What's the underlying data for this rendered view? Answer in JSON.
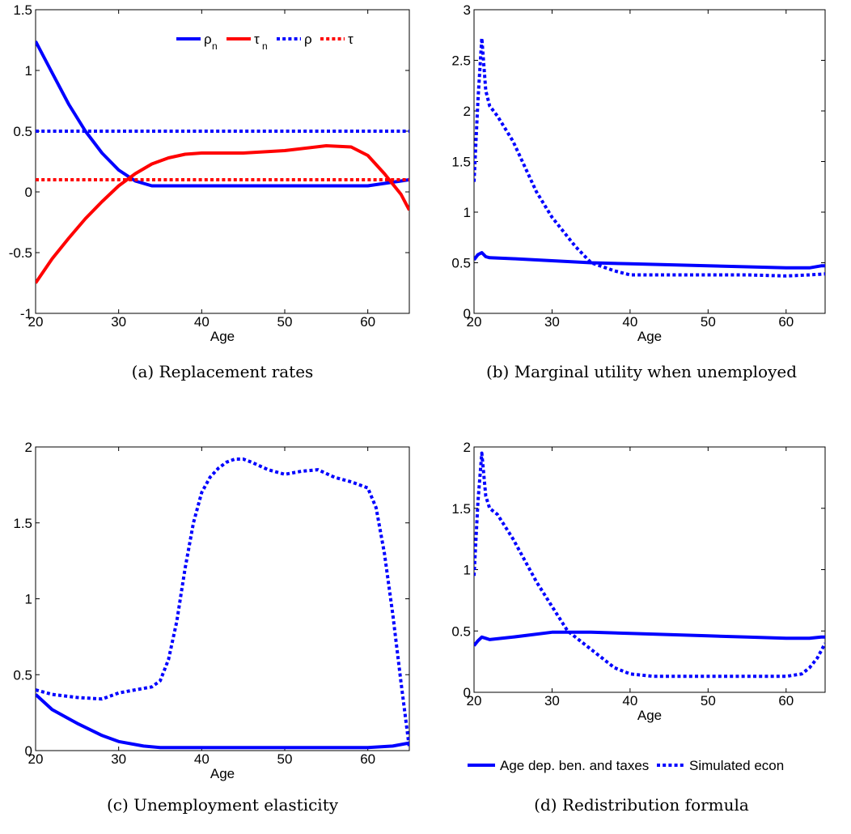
{
  "chart_data": [
    {
      "type": "line",
      "panel": "a",
      "caption": "(a) Replacement rates",
      "xlabel": "Age",
      "ylabel": "",
      "xlim": [
        20,
        65
      ],
      "ylim": [
        -1,
        1.5
      ],
      "xticks": [
        "20",
        "30",
        "40",
        "50",
        "60"
      ],
      "yticks": [
        "-1",
        "-0.5",
        "0",
        "0.5",
        "1",
        "1.5"
      ],
      "grid": false,
      "legend_position": "top-right",
      "series": [
        {
          "name": "ρn",
          "name_base": "ρ",
          "name_sub": "n",
          "color": "#0000ff",
          "style": "solid",
          "x": [
            20,
            22,
            24,
            26,
            28,
            30,
            32,
            34,
            36,
            40,
            45,
            50,
            55,
            58,
            60,
            62,
            64,
            65
          ],
          "y": [
            1.24,
            0.98,
            0.72,
            0.5,
            0.32,
            0.18,
            0.09,
            0.05,
            0.05,
            0.05,
            0.05,
            0.05,
            0.05,
            0.05,
            0.05,
            0.07,
            0.09,
            0.1
          ]
        },
        {
          "name": "τn",
          "name_base": "τ",
          "name_sub": "n",
          "color": "#ff0000",
          "style": "solid",
          "x": [
            20,
            22,
            24,
            26,
            28,
            30,
            32,
            34,
            36,
            38,
            40,
            45,
            50,
            55,
            58,
            60,
            62,
            64,
            65
          ],
          "y": [
            -0.75,
            -0.55,
            -0.38,
            -0.22,
            -0.08,
            0.05,
            0.15,
            0.23,
            0.28,
            0.31,
            0.32,
            0.32,
            0.34,
            0.38,
            0.37,
            0.3,
            0.15,
            -0.02,
            -0.15
          ]
        },
        {
          "name": "ρ",
          "name_base": "ρ",
          "name_sub": "",
          "color": "#0000ff",
          "style": "dotted",
          "x": [
            20,
            65
          ],
          "y": [
            0.5,
            0.5
          ]
        },
        {
          "name": "τ",
          "name_base": "τ",
          "name_sub": "",
          "color": "#ff0000",
          "style": "dotted",
          "x": [
            20,
            65
          ],
          "y": [
            0.1,
            0.1
          ]
        }
      ]
    },
    {
      "type": "line",
      "panel": "b",
      "caption": "(b) Marginal utility when unemployed",
      "xlabel": "Age",
      "ylabel": "",
      "xlim": [
        20,
        65
      ],
      "ylim": [
        0,
        3
      ],
      "xticks": [
        "20",
        "30",
        "40",
        "50",
        "60"
      ],
      "yticks": [
        "0",
        "0.5",
        "1",
        "1.5",
        "2",
        "2.5",
        "3"
      ],
      "grid": false,
      "series": [
        {
          "name": "",
          "color": "#0000ff",
          "style": "solid",
          "x": [
            20,
            20.5,
            21,
            21.5,
            22,
            25,
            30,
            35,
            40,
            45,
            50,
            55,
            60,
            63,
            64.5,
            65
          ],
          "y": [
            0.53,
            0.58,
            0.6,
            0.56,
            0.55,
            0.54,
            0.52,
            0.5,
            0.49,
            0.48,
            0.47,
            0.46,
            0.45,
            0.45,
            0.47,
            0.47
          ]
        },
        {
          "name": "",
          "color": "#0000ff",
          "style": "dotted",
          "x": [
            20,
            20.5,
            21,
            21.5,
            22,
            23,
            25,
            28,
            30,
            33,
            35,
            38,
            40,
            45,
            50,
            55,
            60,
            63,
            65
          ],
          "y": [
            1.3,
            2.1,
            2.72,
            2.2,
            2.05,
            1.95,
            1.7,
            1.2,
            0.95,
            0.66,
            0.5,
            0.42,
            0.38,
            0.38,
            0.38,
            0.38,
            0.37,
            0.38,
            0.39
          ]
        }
      ]
    },
    {
      "type": "line",
      "panel": "c",
      "caption": "(c) Unemployment elasticity",
      "xlabel": "Age",
      "ylabel": "",
      "xlim": [
        20,
        65
      ],
      "ylim": [
        0,
        2
      ],
      "xticks": [
        "20",
        "30",
        "40",
        "50",
        "60"
      ],
      "yticks": [
        "0",
        "0.5",
        "1",
        "1.5",
        "2"
      ],
      "grid": false,
      "series": [
        {
          "name": "",
          "color": "#0000ff",
          "style": "solid",
          "x": [
            20,
            22,
            25,
            28,
            30,
            33,
            35,
            40,
            45,
            50,
            55,
            60,
            63,
            65
          ],
          "y": [
            0.37,
            0.27,
            0.18,
            0.1,
            0.06,
            0.03,
            0.02,
            0.02,
            0.02,
            0.02,
            0.02,
            0.02,
            0.03,
            0.05
          ]
        },
        {
          "name": "",
          "color": "#0000ff",
          "style": "dotted",
          "x": [
            20,
            22,
            25,
            28,
            30,
            32,
            34,
            35,
            36,
            37,
            38,
            39,
            40,
            41,
            42,
            43,
            44,
            45,
            46,
            48,
            50,
            52,
            54,
            56,
            58,
            60,
            61,
            62,
            63,
            64,
            65
          ],
          "y": [
            0.4,
            0.37,
            0.35,
            0.34,
            0.38,
            0.4,
            0.42,
            0.46,
            0.6,
            0.85,
            1.2,
            1.5,
            1.7,
            1.8,
            1.86,
            1.9,
            1.92,
            1.92,
            1.9,
            1.85,
            1.82,
            1.84,
            1.85,
            1.8,
            1.77,
            1.73,
            1.6,
            1.3,
            0.9,
            0.45,
            0.02
          ]
        }
      ]
    },
    {
      "type": "line",
      "panel": "d",
      "caption": "(d) Redistribution formula",
      "xlabel": "Age",
      "ylabel": "",
      "xlim": [
        20,
        65
      ],
      "ylim": [
        0,
        2
      ],
      "xticks": [
        "20",
        "30",
        "40",
        "50",
        "60"
      ],
      "yticks": [
        "0",
        "0.5",
        "1",
        "1.5",
        "2"
      ],
      "grid": false,
      "legend_position": "bottom",
      "series": [
        {
          "name": "Age dep. ben. and taxes",
          "color": "#0000ff",
          "style": "solid",
          "x": [
            20,
            20.5,
            21,
            21.5,
            22,
            25,
            30,
            35,
            40,
            45,
            50,
            55,
            60,
            63,
            64.5,
            65
          ],
          "y": [
            0.38,
            0.42,
            0.45,
            0.44,
            0.43,
            0.45,
            0.49,
            0.49,
            0.48,
            0.47,
            0.46,
            0.45,
            0.44,
            0.44,
            0.45,
            0.45
          ]
        },
        {
          "name": "Simulated econ",
          "color": "#0000ff",
          "style": "dotted",
          "x": [
            20,
            20.5,
            21,
            21.5,
            22,
            23,
            25,
            28,
            30,
            32,
            35,
            38,
            40,
            43,
            45,
            50,
            55,
            60,
            62,
            63,
            64,
            65
          ],
          "y": [
            0.95,
            1.55,
            1.95,
            1.6,
            1.5,
            1.45,
            1.25,
            0.9,
            0.7,
            0.5,
            0.35,
            0.2,
            0.15,
            0.13,
            0.13,
            0.13,
            0.13,
            0.13,
            0.15,
            0.2,
            0.28,
            0.4
          ]
        }
      ]
    }
  ]
}
